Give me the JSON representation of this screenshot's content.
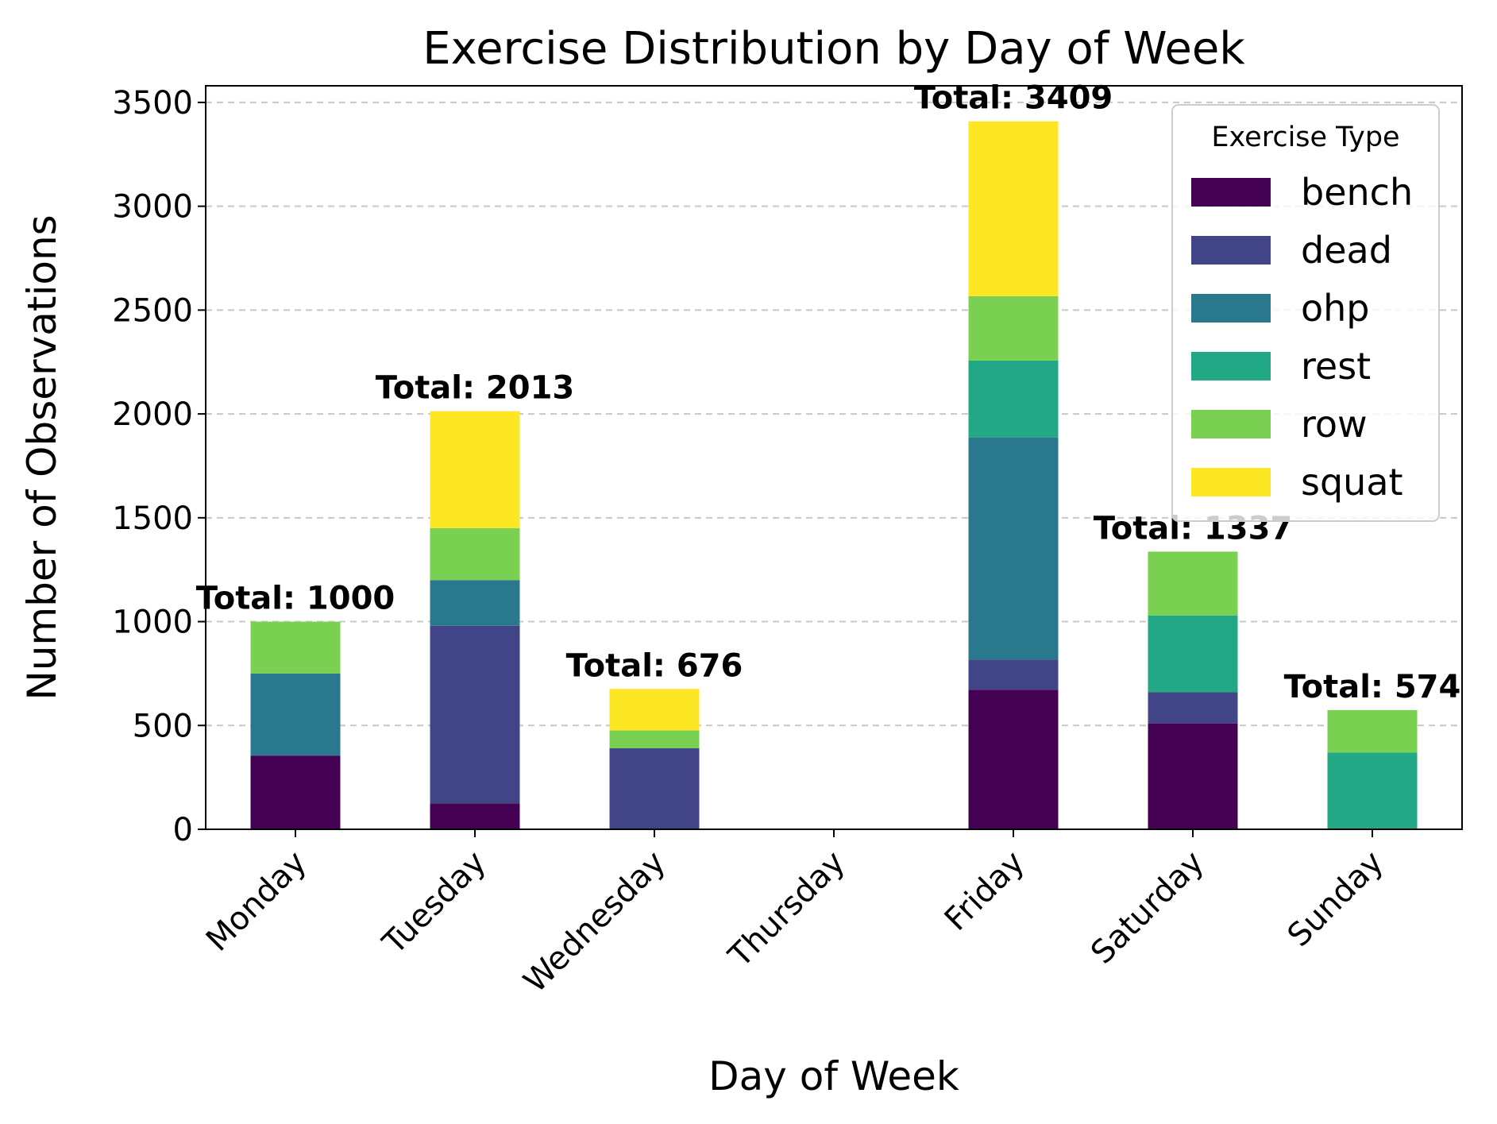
{
  "chart_data": {
    "type": "bar",
    "stacked": true,
    "title": "Exercise Distribution by Day of Week",
    "xlabel": "Day of Week",
    "ylabel": "Number of Observations",
    "ylim": [
      0,
      3580
    ],
    "yticks": [
      0,
      500,
      1000,
      1500,
      2000,
      2500,
      3000,
      3500
    ],
    "grid": "y, dashed",
    "legend_placement": "top-right",
    "legend_title": "Exercise Type",
    "categories": [
      "Monday",
      "Tuesday",
      "Wednesday",
      "Thursday",
      "Friday",
      "Saturday",
      "Sunday"
    ],
    "series": [
      {
        "name": "bench",
        "color": "#440154",
        "values": [
          355,
          125,
          0,
          0,
          672,
          510,
          0
        ]
      },
      {
        "name": "dead",
        "color": "#414487",
        "values": [
          0,
          855,
          390,
          0,
          145,
          150,
          0
        ]
      },
      {
        "name": "ohp",
        "color": "#2a788e",
        "values": [
          395,
          220,
          0,
          0,
          1070,
          0,
          0
        ]
      },
      {
        "name": "rest",
        "color": "#22a884",
        "values": [
          0,
          0,
          0,
          0,
          370,
          370,
          370
        ]
      },
      {
        "name": "row",
        "color": "#7ad151",
        "values": [
          250,
          250,
          86,
          0,
          310,
          307,
          204
        ]
      },
      {
        "name": "squat",
        "color": "#fde725",
        "values": [
          0,
          563,
          200,
          0,
          842,
          0,
          0
        ]
      }
    ],
    "totals": [
      {
        "day": "Monday",
        "label": "Total: 1000"
      },
      {
        "day": "Tuesday",
        "label": "Total: 2013"
      },
      {
        "day": "Wednesday",
        "label": "Total: 676"
      },
      {
        "day": "Friday",
        "label": "Total: 3409"
      },
      {
        "day": "Saturday",
        "label": "Total: 1337"
      },
      {
        "day": "Sunday",
        "label": "Total: 574"
      }
    ]
  }
}
